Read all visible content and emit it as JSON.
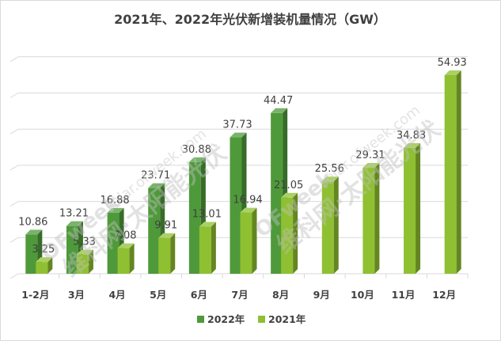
{
  "chart_data": {
    "type": "bar",
    "title": "2021年、2022年光伏新增装机量情况（GW）",
    "categories": [
      "1-2月",
      "3月",
      "4月",
      "5月",
      "6月",
      "7月",
      "8月",
      "9月",
      "10月",
      "11月",
      "12月"
    ],
    "series": [
      {
        "name": "2022年",
        "color": "#4e9a3a",
        "values": [
          10.86,
          13.21,
          16.88,
          23.71,
          30.88,
          37.73,
          44.47,
          null,
          null,
          null,
          null
        ],
        "labels": [
          "10.86",
          "13.21",
          "16.88",
          "23.71",
          "30.88",
          "37.73",
          "44.47",
          "",
          "",
          "",
          ""
        ]
      },
      {
        "name": "2021年",
        "color": "#8fc031",
        "values": [
          3.25,
          5.33,
          7.08,
          9.91,
          13.01,
          16.94,
          21.05,
          25.56,
          29.31,
          34.83,
          54.93
        ],
        "labels": [
          "3.25",
          "5.33",
          "7.08",
          "9.91",
          "13.01",
          "16.94",
          "21.05",
          "25.56",
          "29.31",
          "34.83",
          "54.93"
        ]
      }
    ],
    "ylim": [
      0,
      60
    ],
    "grid": true,
    "legend": "bottom-center",
    "xlabel": "",
    "ylabel": ""
  },
  "watermark": {
    "logo": "OFweek",
    "url": "solar.ofweek.com",
    "cn": "维科网·太阳能光伏"
  }
}
